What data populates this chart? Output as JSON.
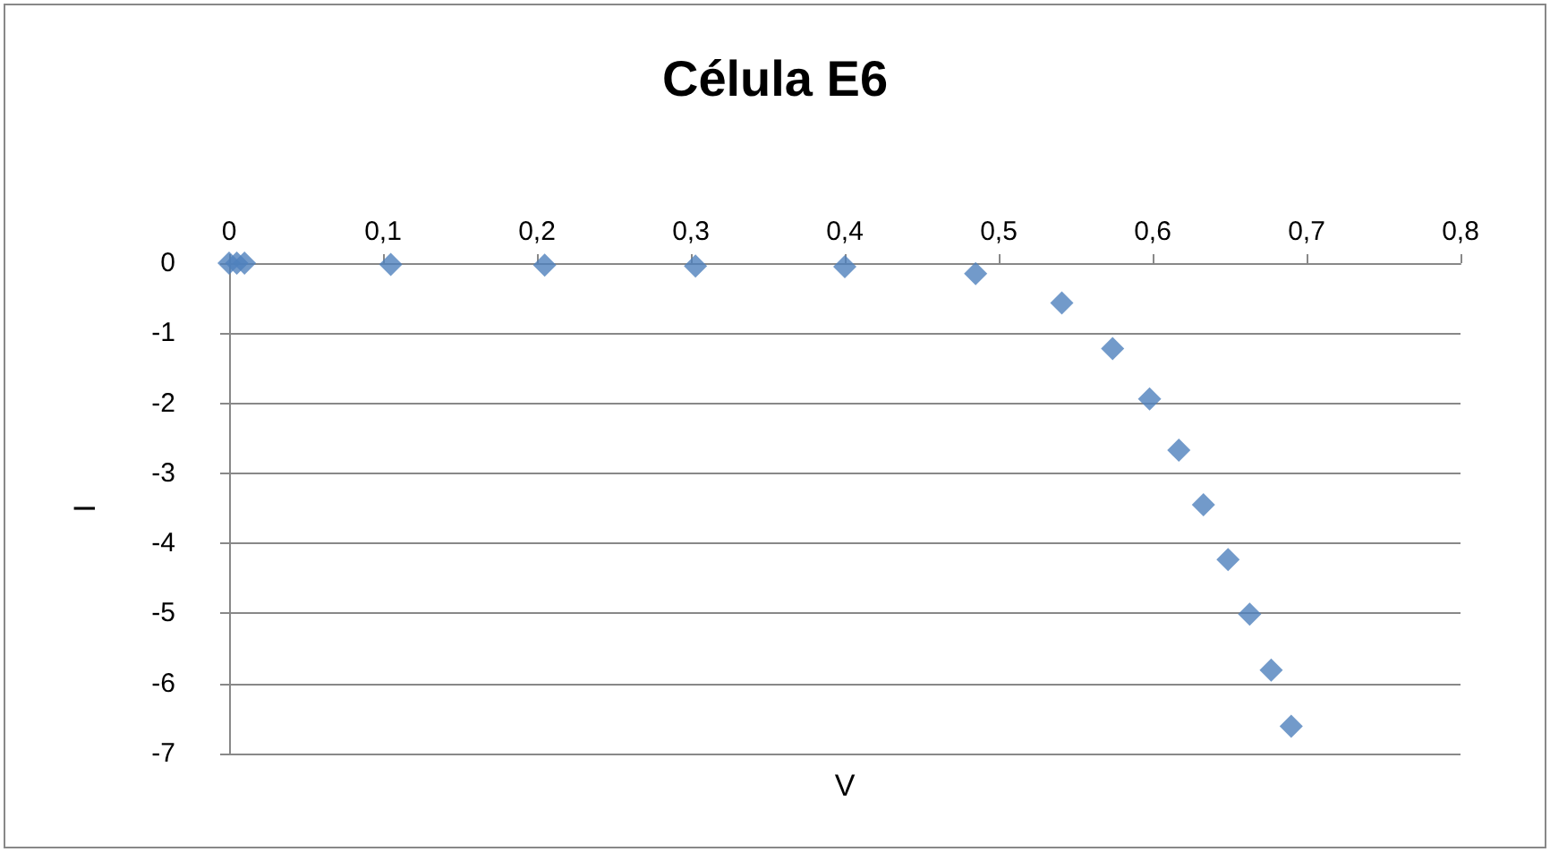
{
  "chart_data": {
    "type": "scatter",
    "title": "Célula E6",
    "xlabel": "V",
    "ylabel": "I",
    "x": [
      0,
      0.005,
      0.01,
      0.105,
      0.205,
      0.303,
      0.4,
      0.485,
      0.541,
      0.574,
      0.598,
      0.617,
      0.633,
      0.649,
      0.663,
      0.677,
      0.69
    ],
    "series": [
      {
        "color": "#4f81bd",
        "values": [
          0,
          0,
          0,
          -0.02,
          -0.03,
          -0.04,
          -0.05,
          -0.15,
          -0.57,
          -1.22,
          -1.94,
          -2.67,
          -3.45,
          -4.23,
          -5.01,
          -5.81,
          -6.61
        ]
      }
    ],
    "xlim": [
      0,
      0.8
    ],
    "xticks": [
      0,
      {
        "value": 0.1,
        "label": "0,1"
      },
      {
        "value": 0.2,
        "label": "0,2"
      },
      {
        "value": 0.3,
        "label": "0,3"
      },
      {
        "value": 0.4,
        "label": "0,4"
      },
      {
        "value": 0.5,
        "label": "0,5"
      },
      {
        "value": 0.6,
        "label": "0,6"
      },
      {
        "value": 0.7,
        "label": "0,7"
      },
      {
        "value": 0.8,
        "label": "0,8"
      }
    ],
    "ylim": [
      -7,
      0
    ],
    "yticks": [
      -7,
      -6,
      -5,
      -4,
      -3,
      -2,
      -1,
      0
    ],
    "grid": "y",
    "marker": "diamond"
  }
}
